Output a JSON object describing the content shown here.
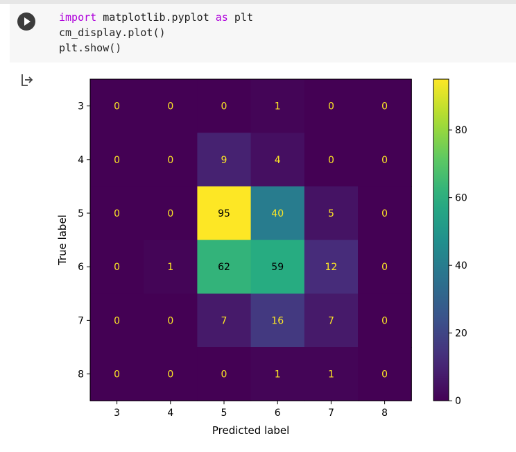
{
  "cell": {
    "line1_kw1": "import",
    "line1_mid": " matplotlib.pyplot ",
    "line1_kw2": "as",
    "line1_end": " plt",
    "line2": "cm_display.plot()",
    "line3": "plt.show()"
  },
  "icons": {
    "run": "play-circle",
    "output": "output-arrow"
  },
  "chart_data": {
    "type": "heatmap",
    "x_categories": [
      "3",
      "4",
      "5",
      "6",
      "7",
      "8"
    ],
    "y_categories": [
      "3",
      "4",
      "5",
      "6",
      "7",
      "8"
    ],
    "values": [
      [
        0,
        0,
        0,
        1,
        0,
        0
      ],
      [
        0,
        0,
        9,
        4,
        0,
        0
      ],
      [
        0,
        0,
        95,
        40,
        5,
        0
      ],
      [
        0,
        1,
        62,
        59,
        12,
        0
      ],
      [
        0,
        0,
        7,
        16,
        7,
        0
      ],
      [
        0,
        0,
        0,
        1,
        1,
        0
      ]
    ],
    "xlabel": "Predicted label",
    "ylabel": "True label",
    "colormap": "viridis",
    "colorbar_ticks": [
      "0",
      "20",
      "40",
      "60",
      "80"
    ],
    "colorbar_tick_values": [
      0,
      20,
      40,
      60,
      80
    ],
    "vmin": 0,
    "vmax": 95,
    "label_color_dark": "#000000",
    "label_color_light": "#fde725"
  }
}
